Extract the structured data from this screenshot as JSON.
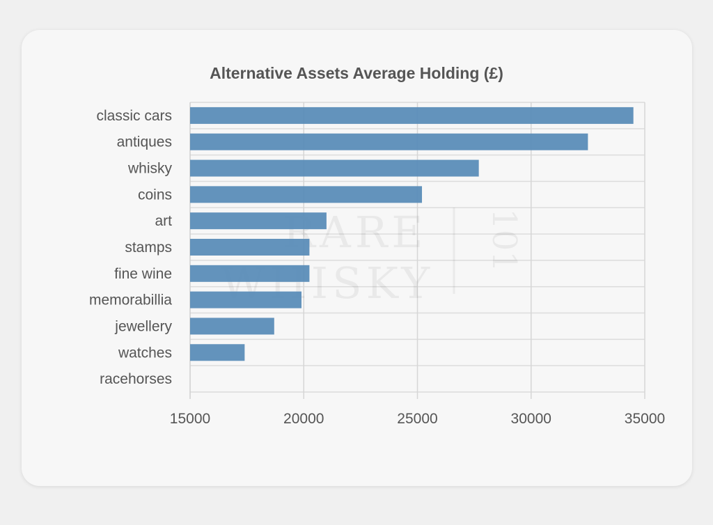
{
  "chart_data": {
    "type": "bar",
    "orientation": "horizontal",
    "title": "Alternative Assets Average Holding (£)",
    "xlabel": "",
    "ylabel": "",
    "categories": [
      "classic cars",
      "antiques",
      "whisky",
      "coins",
      "art",
      "stamps",
      "fine wine",
      "memorabillia",
      "jewellery",
      "watches",
      "racehorses"
    ],
    "values": [
      34500,
      32500,
      27700,
      25200,
      21000,
      20250,
      20250,
      19900,
      18700,
      17400,
      15000
    ],
    "xlim": [
      15000,
      35000
    ],
    "xticks": [
      15000,
      20000,
      25000,
      30000,
      35000
    ],
    "grid": true,
    "legend": "none",
    "bar_color": "#5b8db8"
  },
  "watermark": {
    "line1": "RARE",
    "line2": "WHISKY",
    "badge": "101"
  }
}
